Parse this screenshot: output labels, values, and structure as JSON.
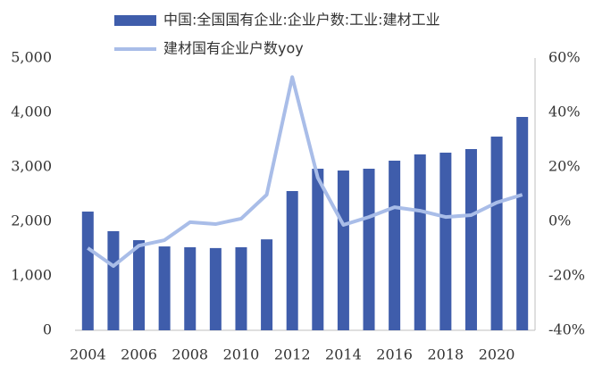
{
  "chart_data": {
    "type": "bar-line",
    "categories": [
      "2004",
      null,
      "2006",
      null,
      "2008",
      null,
      "2010",
      null,
      "2012",
      null,
      "2014",
      null,
      "2016",
      null,
      "2018",
      null,
      "2020",
      null
    ],
    "series": [
      {
        "name": "中国:全国国有企业:企业户数:工业:建材工业",
        "type": "bar",
        "color": "#3f5dab",
        "values": [
          2180,
          1820,
          1655,
          1540,
          1525,
          1510,
          1525,
          1670,
          2557,
          2967,
          2934,
          2967,
          3115,
          3230,
          3262,
          3328,
          3557,
          3918
        ]
      },
      {
        "name": "建材国有企业户数yoy",
        "type": "line",
        "axis": "y2",
        "color": "#a9bde8",
        "values": [
          -9.8,
          -16.4,
          -8.9,
          -6.9,
          -0.3,
          -1,
          1,
          9.8,
          53,
          16,
          -1.3,
          1.6,
          5.2,
          3.9,
          1.6,
          2.3,
          6.9,
          9.8
        ]
      }
    ],
    "ylim": [
      0,
      5000
    ],
    "yticks": [
      0,
      {
        "value": 1000,
        "label": "1,000"
      },
      {
        "value": 2000,
        "label": "2,000"
      },
      {
        "value": 3000,
        "label": "3,000"
      },
      {
        "value": 4000,
        "label": "4,000"
      },
      {
        "value": 5000,
        "label": "5,000"
      }
    ],
    "y2lim": [
      -40,
      60
    ],
    "y2ticks": [
      {
        "value": -40,
        "label": "-40%"
      },
      {
        "value": -20,
        "label": "-20%"
      },
      {
        "value": 0,
        "label": "0%"
      },
      {
        "value": 20,
        "label": "20%"
      },
      {
        "value": 40,
        "label": "40%"
      },
      {
        "value": 60,
        "label": "60%"
      }
    ],
    "legend": "top"
  }
}
